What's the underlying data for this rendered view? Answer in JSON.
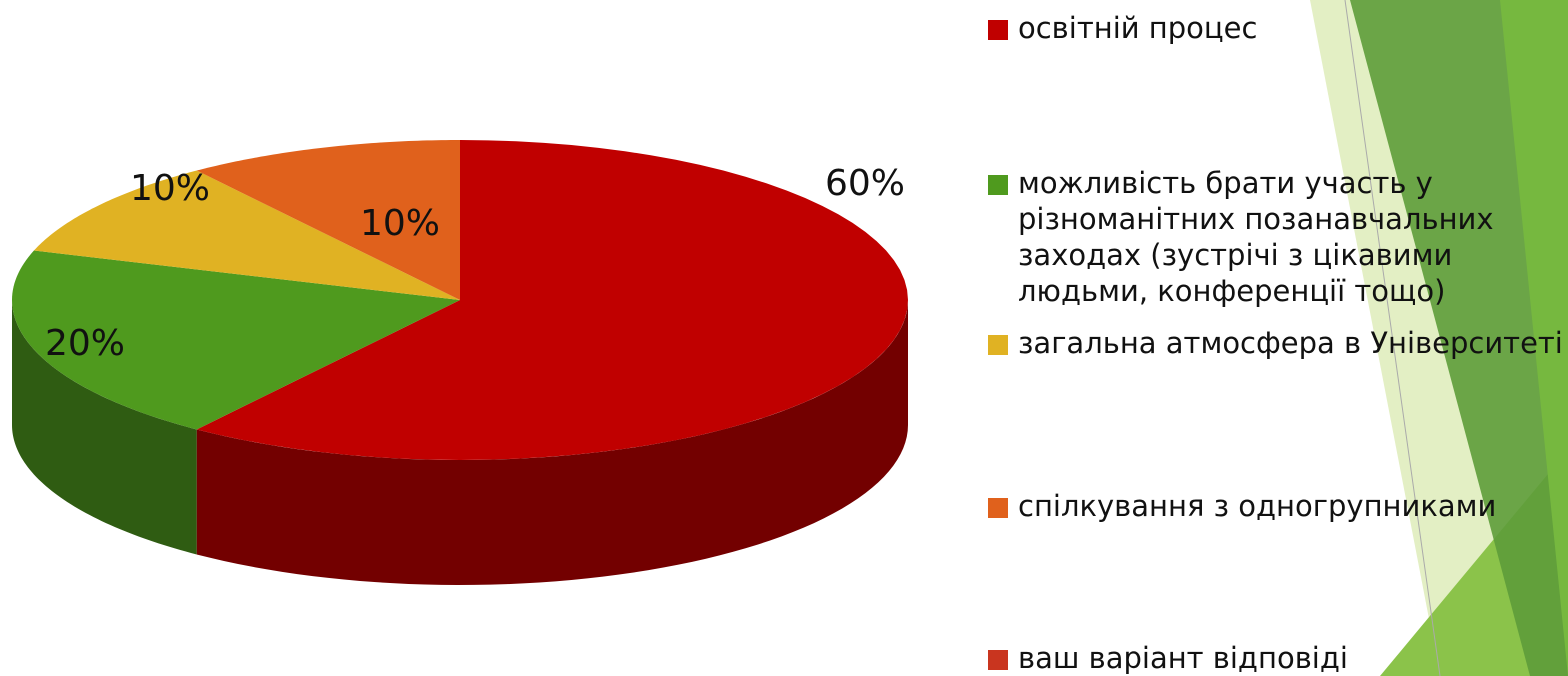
{
  "chart_data": {
    "type": "pie",
    "categories": [
      "освітній процес",
      "можливість брати участь у різноманітних позанавчальних заходах (зустрічі з цікавими людьми, конференції тощо)",
      "загальна атмосфера в Університеті",
      "спілкування з одногрупниками",
      "ваш варіант відповіді"
    ],
    "values": [
      60,
      20,
      10,
      10,
      0
    ],
    "value_labels": [
      "60%",
      "20%",
      "10%",
      "10%",
      null
    ],
    "colors": [
      "#c00000",
      "#4f9a1e",
      "#e0b223",
      "#e0611c",
      "#c9351f"
    ],
    "legend": "right"
  }
}
